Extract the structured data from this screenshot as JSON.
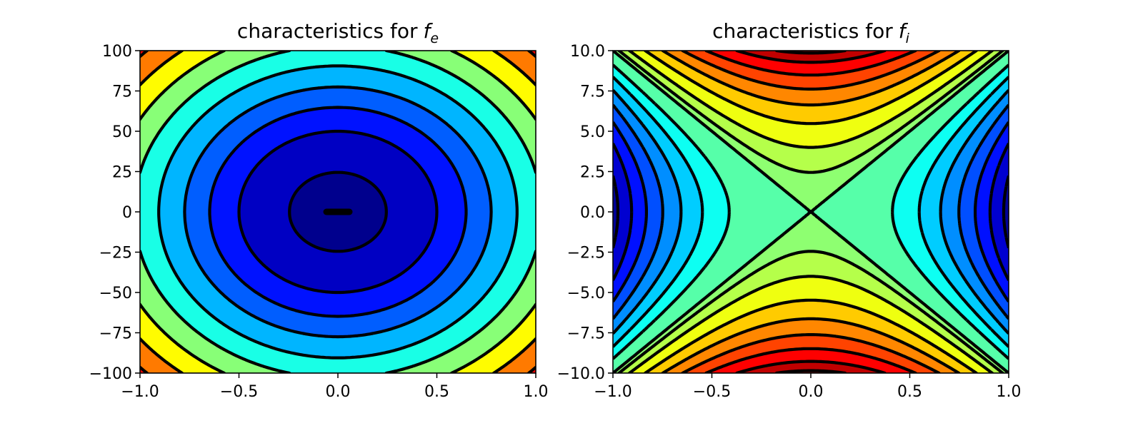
{
  "chart_data": [
    {
      "type": "contour",
      "title": "characteristics for",
      "title_subscript": "e",
      "xlabel": "",
      "ylabel": "",
      "xlim": [
        -1.0,
        1.0
      ],
      "ylim": [
        -100,
        100
      ],
      "x_ticks": [
        "−1.0",
        "−0.5",
        "0.0",
        "0.5",
        "1.0"
      ],
      "y_ticks": [
        "100",
        "75",
        "50",
        "25",
        "0",
        "−25",
        "−50",
        "−75",
        "−100"
      ],
      "colormap": "jet",
      "filled": true,
      "line_color": "#000000"
    },
    {
      "type": "contour",
      "title": "characteristics for",
      "title_subscript": "i",
      "xlabel": "",
      "ylabel": "",
      "xlim": [
        -1.0,
        1.0
      ],
      "ylim": [
        -10.0,
        10.0
      ],
      "x_ticks": [
        "−1.0",
        "−0.5",
        "0.0",
        "0.5",
        "1.0"
      ],
      "y_ticks": [
        "10.0",
        "7.5",
        "5.0",
        "2.5",
        "0.0",
        "−2.5",
        "−5.0",
        "−7.5",
        "−10.0"
      ],
      "colormap": "jet",
      "filled": true,
      "line_color": "#000000",
      "negative_levels_dashed": true
    }
  ]
}
